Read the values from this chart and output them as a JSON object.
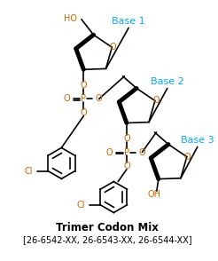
{
  "title_line1": "Trimer Codon Mix",
  "title_line2": "[26-6542-XX, 26-6543-XX, 26-6544-XX]",
  "base_labels": [
    "Base 1",
    "Base 2",
    "Base 3"
  ],
  "base_label_color": "#00aaff",
  "atom_color": "#cc6600",
  "line_color": "#000000",
  "bg_color": "#ffffff",
  "title_color": "#000000",
  "figsize": [
    2.46,
    2.94
  ],
  "dpi": 100
}
